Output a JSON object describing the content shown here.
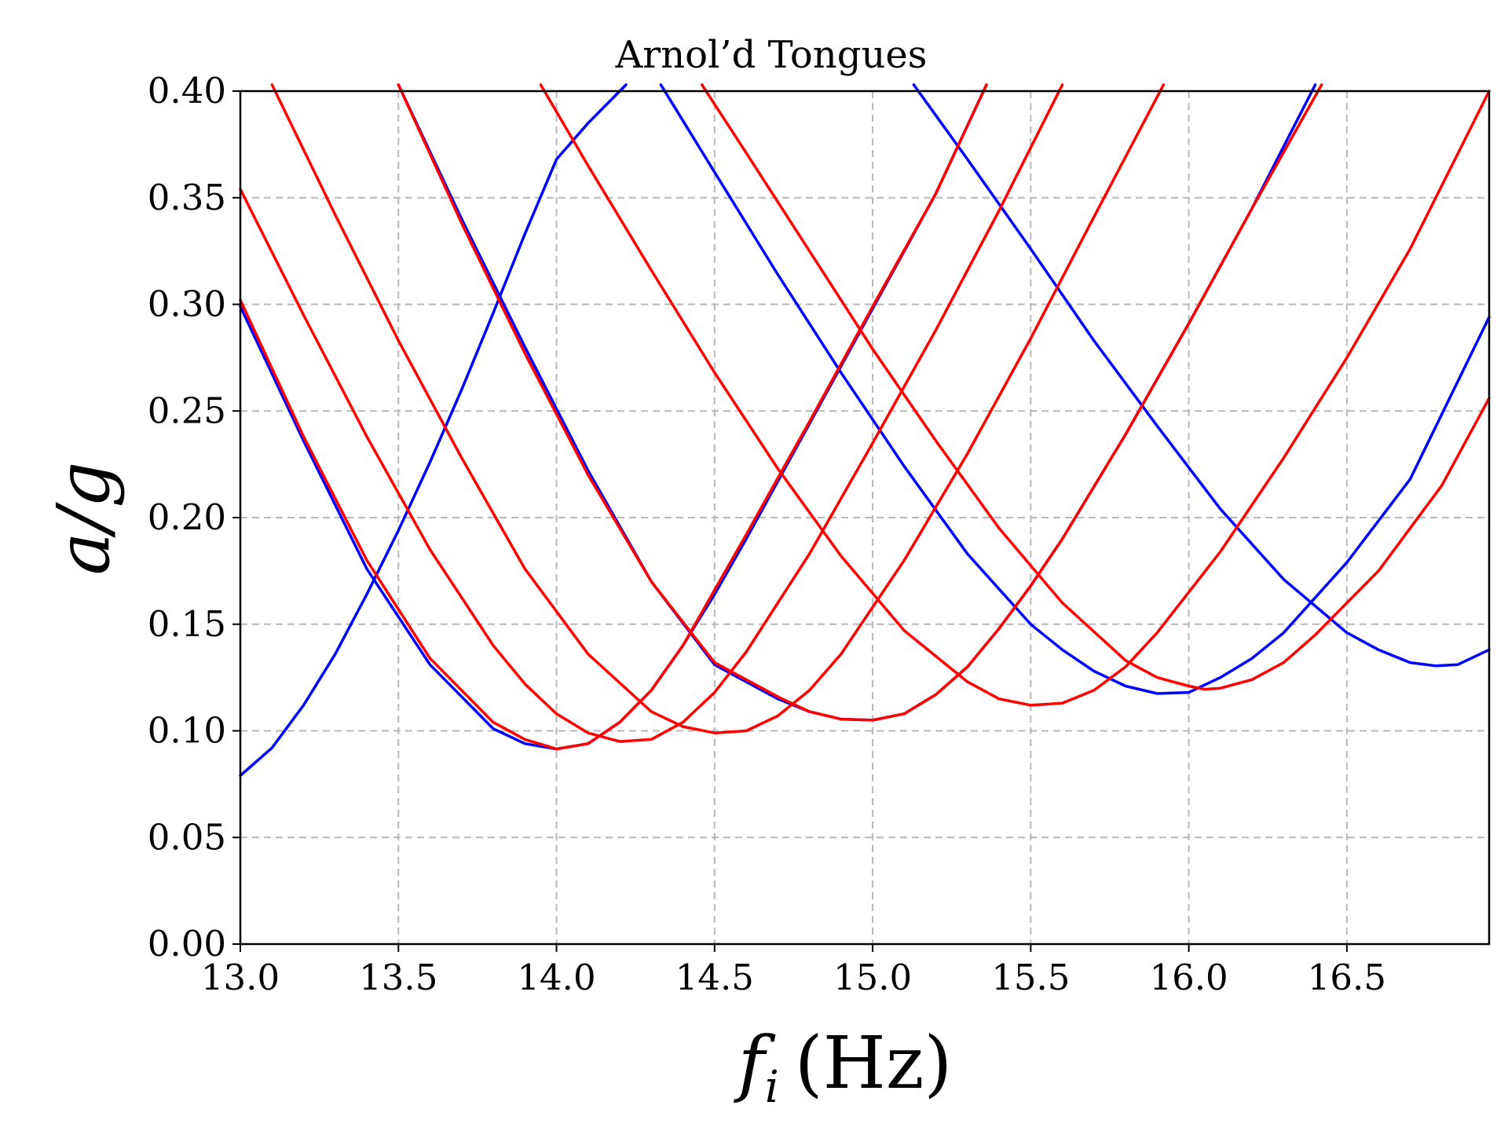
{
  "chart_data": {
    "type": "line",
    "title": "Arnol’d Tongues",
    "xlabel": "f_i (Hz)",
    "xlabel_parts": {
      "var": "f",
      "sub": "i",
      "unit": "(Hz)"
    },
    "ylabel": "a/g",
    "xlim": [
      13.0,
      16.95
    ],
    "ylim": [
      0.0,
      0.4
    ],
    "xticks": [
      "13.0",
      "13.5",
      "14.0",
      "14.5",
      "15.0",
      "15.5",
      "16.0",
      "16.5"
    ],
    "yticks": [
      "0.00",
      "0.05",
      "0.10",
      "0.15",
      "0.20",
      "0.25",
      "0.30",
      "0.35",
      "0.40"
    ],
    "grid": true,
    "colors": {
      "blue": "#0000ff",
      "red": "#ff0000",
      "grid": "#b8b8b8"
    },
    "series": [
      {
        "color": "#0000ff",
        "points": [
          [
            13.0,
            0.079
          ],
          [
            13.1,
            0.092
          ],
          [
            13.2,
            0.112
          ],
          [
            13.3,
            0.136
          ],
          [
            13.4,
            0.164
          ],
          [
            13.5,
            0.194
          ],
          [
            13.6,
            0.226
          ],
          [
            13.7,
            0.26
          ],
          [
            13.8,
            0.296
          ],
          [
            13.9,
            0.333
          ],
          [
            14.0,
            0.368
          ],
          [
            14.1,
            0.385
          ],
          [
            14.22,
            0.403
          ]
        ]
      },
      {
        "color": "#0000ff",
        "points": [
          [
            13.0,
            0.299
          ],
          [
            13.2,
            0.236
          ],
          [
            13.4,
            0.176
          ],
          [
            13.6,
            0.131
          ],
          [
            13.8,
            0.101
          ],
          [
            13.9,
            0.094
          ],
          [
            14.0,
            0.0915
          ],
          [
            14.1,
            0.094
          ],
          [
            14.2,
            0.104
          ],
          [
            14.3,
            0.119
          ],
          [
            14.4,
            0.14
          ],
          [
            14.5,
            0.164
          ],
          [
            14.6,
            0.19
          ],
          [
            14.8,
            0.244
          ],
          [
            15.0,
            0.298
          ],
          [
            15.2,
            0.352
          ],
          [
            15.36,
            0.403
          ]
        ]
      },
      {
        "color": "#0000ff",
        "points": [
          [
            13.5,
            0.403
          ],
          [
            13.7,
            0.34
          ],
          [
            13.9,
            0.28
          ],
          [
            14.1,
            0.222
          ],
          [
            14.3,
            0.17
          ],
          [
            14.5,
            0.131
          ],
          [
            14.7,
            0.115
          ],
          [
            14.8,
            0.109
          ],
          [
            14.9,
            0.1055
          ],
          [
            15.0,
            0.105
          ],
          [
            15.1,
            0.108
          ],
          [
            15.2,
            0.117
          ],
          [
            15.3,
            0.13
          ],
          [
            15.4,
            0.148
          ],
          [
            15.5,
            0.168
          ],
          [
            15.6,
            0.19
          ],
          [
            15.8,
            0.239
          ],
          [
            16.0,
            0.291
          ],
          [
            16.2,
            0.345
          ],
          [
            16.4,
            0.403
          ]
        ]
      },
      {
        "color": "#0000ff",
        "points": [
          [
            14.33,
            0.403
          ],
          [
            14.5,
            0.362
          ],
          [
            14.7,
            0.314
          ],
          [
            14.9,
            0.268
          ],
          [
            15.1,
            0.224
          ],
          [
            15.3,
            0.183
          ],
          [
            15.5,
            0.15
          ],
          [
            15.6,
            0.138
          ],
          [
            15.7,
            0.128
          ],
          [
            15.8,
            0.121
          ],
          [
            15.9,
            0.1175
          ],
          [
            16.0,
            0.118
          ],
          [
            16.1,
            0.125
          ],
          [
            16.2,
            0.134
          ],
          [
            16.3,
            0.146
          ],
          [
            16.5,
            0.179
          ],
          [
            16.7,
            0.218
          ],
          [
            16.95,
            0.294
          ]
        ]
      },
      {
        "color": "#0000ff",
        "points": [
          [
            15.13,
            0.403
          ],
          [
            15.3,
            0.368
          ],
          [
            15.5,
            0.326
          ],
          [
            15.7,
            0.283
          ],
          [
            15.9,
            0.243
          ],
          [
            16.1,
            0.204
          ],
          [
            16.3,
            0.171
          ],
          [
            16.5,
            0.146
          ],
          [
            16.6,
            0.138
          ],
          [
            16.7,
            0.132
          ],
          [
            16.78,
            0.1305
          ],
          [
            16.85,
            0.131
          ],
          [
            16.95,
            0.138
          ]
        ]
      },
      {
        "color": "#ff0000",
        "points": [
          [
            13.0,
            0.302
          ],
          [
            13.2,
            0.238
          ],
          [
            13.4,
            0.18
          ],
          [
            13.6,
            0.134
          ],
          [
            13.8,
            0.104
          ],
          [
            13.9,
            0.096
          ],
          [
            14.0,
            0.0915
          ],
          [
            14.1,
            0.094
          ],
          [
            14.2,
            0.104
          ],
          [
            14.3,
            0.119
          ],
          [
            14.4,
            0.14
          ],
          [
            14.5,
            0.166
          ],
          [
            14.6,
            0.192
          ],
          [
            14.8,
            0.245
          ],
          [
            15.0,
            0.299
          ],
          [
            15.2,
            0.352
          ],
          [
            15.36,
            0.403
          ]
        ]
      },
      {
        "color": "#ff0000",
        "points": [
          [
            13.0,
            0.354
          ],
          [
            13.2,
            0.295
          ],
          [
            13.4,
            0.238
          ],
          [
            13.6,
            0.185
          ],
          [
            13.8,
            0.14
          ],
          [
            13.9,
            0.122
          ],
          [
            14.0,
            0.108
          ],
          [
            14.1,
            0.099
          ],
          [
            14.2,
            0.095
          ],
          [
            14.3,
            0.096
          ],
          [
            14.4,
            0.104
          ],
          [
            14.5,
            0.118
          ],
          [
            14.6,
            0.137
          ],
          [
            14.8,
            0.183
          ],
          [
            15.0,
            0.235
          ],
          [
            15.2,
            0.288
          ],
          [
            15.4,
            0.344
          ],
          [
            15.6,
            0.403
          ]
        ]
      },
      {
        "color": "#ff0000",
        "points": [
          [
            13.1,
            0.403
          ],
          [
            13.3,
            0.342
          ],
          [
            13.5,
            0.283
          ],
          [
            13.7,
            0.228
          ],
          [
            13.9,
            0.176
          ],
          [
            14.1,
            0.136
          ],
          [
            14.3,
            0.109
          ],
          [
            14.4,
            0.102
          ],
          [
            14.5,
            0.099
          ],
          [
            14.6,
            0.1
          ],
          [
            14.7,
            0.107
          ],
          [
            14.8,
            0.119
          ],
          [
            14.9,
            0.136
          ],
          [
            15.1,
            0.18
          ],
          [
            15.3,
            0.23
          ],
          [
            15.5,
            0.284
          ],
          [
            15.7,
            0.341
          ],
          [
            15.92,
            0.403
          ]
        ]
      },
      {
        "color": "#ff0000",
        "points": [
          [
            13.5,
            0.403
          ],
          [
            13.7,
            0.338
          ],
          [
            13.9,
            0.277
          ],
          [
            14.1,
            0.22
          ],
          [
            14.3,
            0.17
          ],
          [
            14.5,
            0.132
          ],
          [
            14.7,
            0.116
          ],
          [
            14.8,
            0.109
          ],
          [
            14.9,
            0.1055
          ],
          [
            15.0,
            0.105
          ],
          [
            15.1,
            0.108
          ],
          [
            15.2,
            0.117
          ],
          [
            15.3,
            0.13
          ],
          [
            15.4,
            0.148
          ],
          [
            15.5,
            0.168
          ],
          [
            15.6,
            0.19
          ],
          [
            15.8,
            0.239
          ],
          [
            16.0,
            0.291
          ],
          [
            16.2,
            0.345
          ],
          [
            16.42,
            0.403
          ]
        ]
      },
      {
        "color": "#ff0000",
        "points": [
          [
            13.95,
            0.403
          ],
          [
            14.1,
            0.365
          ],
          [
            14.3,
            0.316
          ],
          [
            14.5,
            0.268
          ],
          [
            14.7,
            0.223
          ],
          [
            14.9,
            0.182
          ],
          [
            15.1,
            0.147
          ],
          [
            15.3,
            0.123
          ],
          [
            15.4,
            0.115
          ],
          [
            15.5,
            0.112
          ],
          [
            15.6,
            0.113
          ],
          [
            15.7,
            0.119
          ],
          [
            15.8,
            0.13
          ],
          [
            15.9,
            0.146
          ],
          [
            16.1,
            0.184
          ],
          [
            16.3,
            0.228
          ],
          [
            16.5,
            0.275
          ],
          [
            16.7,
            0.326
          ],
          [
            16.95,
            0.4
          ]
        ]
      },
      {
        "color": "#ff0000",
        "points": [
          [
            14.46,
            0.403
          ],
          [
            14.6,
            0.371
          ],
          [
            14.8,
            0.325
          ],
          [
            15.0,
            0.279
          ],
          [
            15.2,
            0.236
          ],
          [
            15.4,
            0.195
          ],
          [
            15.6,
            0.16
          ],
          [
            15.8,
            0.133
          ],
          [
            15.9,
            0.125
          ],
          [
            16.0,
            0.121
          ],
          [
            16.05,
            0.1195
          ],
          [
            16.1,
            0.12
          ],
          [
            16.2,
            0.124
          ],
          [
            16.3,
            0.132
          ],
          [
            16.4,
            0.145
          ],
          [
            16.6,
            0.175
          ],
          [
            16.8,
            0.215
          ],
          [
            16.95,
            0.256
          ]
        ]
      }
    ]
  }
}
